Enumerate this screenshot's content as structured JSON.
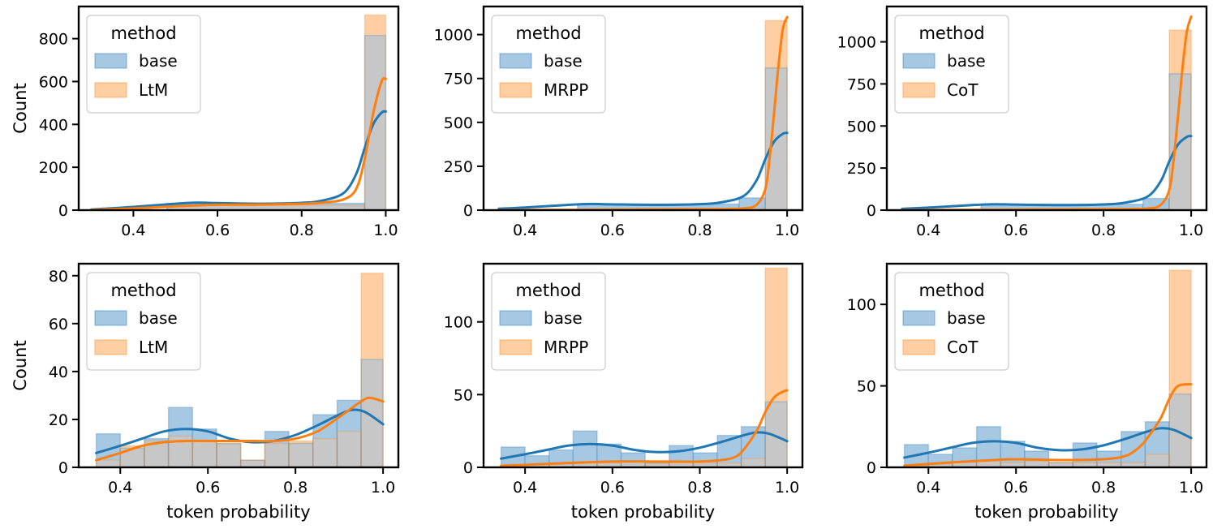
{
  "colors": {
    "base": "#1f77b4",
    "alt": "#ff7f0e",
    "base_fill": "#a6c8e3",
    "alt_fill": "#ffcfa3",
    "overlap_fill": "#bdbdbd"
  },
  "chart_data": [
    {
      "type": "histogram",
      "panel": "top-left",
      "legend_title": "method",
      "legend": [
        "base",
        "LtM"
      ],
      "xlabel": "",
      "ylabel": "Count",
      "xlim": [
        0.27,
        1.03
      ],
      "ylim": [
        0,
        950
      ],
      "xticks": [
        0.4,
        0.6,
        0.8,
        1.0
      ],
      "xtick_labels": [
        "0.4",
        "0.6",
        "0.8",
        "1.0"
      ],
      "yticks": [
        0,
        200,
        400,
        600,
        800
      ],
      "ytick_labels": [
        "0",
        "200",
        "400",
        "600",
        "800"
      ],
      "bin_edges": [
        0.48,
        0.95,
        1.0
      ],
      "series": [
        {
          "name": "base",
          "counts": [
            32,
            815
          ],
          "kde_x": [
            0.3,
            0.4,
            0.5,
            0.55,
            0.6,
            0.7,
            0.8,
            0.85,
            0.9,
            0.93,
            0.95,
            0.97,
            0.99,
            1.0
          ],
          "kde_y": [
            3,
            15,
            30,
            35,
            33,
            30,
            34,
            45,
            80,
            170,
            290,
            400,
            455,
            460
          ]
        },
        {
          "name": "LtM",
          "counts": [
            22,
            910
          ],
          "kde_x": [
            0.3,
            0.4,
            0.5,
            0.6,
            0.7,
            0.8,
            0.85,
            0.9,
            0.93,
            0.95,
            0.97,
            0.99,
            1.0
          ],
          "kde_y": [
            1,
            8,
            18,
            25,
            26,
            30,
            35,
            50,
            100,
            240,
            450,
            600,
            612
          ]
        }
      ]
    },
    {
      "type": "histogram",
      "panel": "top-middle",
      "legend_title": "method",
      "legend": [
        "base",
        "MRPP"
      ],
      "xlabel": "",
      "ylabel": "",
      "xlim": [
        0.305,
        1.035
      ],
      "ylim": [
        0,
        1160
      ],
      "xticks": [
        0.4,
        0.6,
        0.8,
        1.0
      ],
      "xtick_labels": [
        "0.4",
        "0.6",
        "0.8",
        "1.0"
      ],
      "yticks": [
        0,
        250,
        500,
        750,
        1000
      ],
      "ytick_labels": [
        "0",
        "250",
        "500",
        "750",
        "1000"
      ],
      "bin_edges": [
        0.52,
        0.89,
        0.95,
        1.0
      ],
      "series": [
        {
          "name": "base",
          "counts": [
            35,
            70,
            810
          ],
          "kde_x": [
            0.34,
            0.4,
            0.5,
            0.55,
            0.6,
            0.7,
            0.8,
            0.85,
            0.9,
            0.93,
            0.95,
            0.97,
            0.99,
            1.0
          ],
          "kde_y": [
            8,
            15,
            30,
            35,
            33,
            30,
            34,
            45,
            80,
            170,
            290,
            390,
            435,
            440
          ]
        },
        {
          "name": "MRPP",
          "counts": [
            3,
            8,
            1080
          ],
          "kde_x": [
            0.34,
            0.5,
            0.7,
            0.85,
            0.9,
            0.93,
            0.95,
            0.96,
            0.97,
            0.98,
            0.99,
            1.0
          ],
          "kde_y": [
            0,
            2,
            4,
            6,
            10,
            30,
            120,
            300,
            550,
            820,
            1030,
            1100
          ]
        }
      ]
    },
    {
      "type": "histogram",
      "panel": "top-right",
      "legend_title": "method",
      "legend": [
        "base",
        "CoT"
      ],
      "xlabel": "",
      "ylabel": "",
      "xlim": [
        0.305,
        1.035
      ],
      "ylim": [
        0,
        1210
      ],
      "xticks": [
        0.4,
        0.6,
        0.8,
        1.0
      ],
      "xtick_labels": [
        "0.4",
        "0.6",
        "0.8",
        "1.0"
      ],
      "yticks": [
        0,
        250,
        500,
        750,
        1000
      ],
      "ytick_labels": [
        "0",
        "250",
        "500",
        "750",
        "1000"
      ],
      "bin_edges": [
        0.52,
        0.89,
        0.95,
        1.0
      ],
      "series": [
        {
          "name": "base",
          "counts": [
            35,
            70,
            810
          ],
          "kde_x": [
            0.34,
            0.4,
            0.5,
            0.55,
            0.6,
            0.7,
            0.8,
            0.85,
            0.9,
            0.93,
            0.95,
            0.97,
            0.99,
            1.0
          ],
          "kde_y": [
            8,
            15,
            30,
            35,
            33,
            30,
            34,
            45,
            80,
            170,
            290,
            390,
            435,
            440
          ]
        },
        {
          "name": "CoT",
          "counts": [
            3,
            8,
            1070
          ],
          "kde_x": [
            0.34,
            0.5,
            0.7,
            0.85,
            0.9,
            0.93,
            0.95,
            0.96,
            0.97,
            0.98,
            0.99,
            1.0
          ],
          "kde_y": [
            0,
            2,
            4,
            6,
            10,
            30,
            120,
            300,
            560,
            840,
            1060,
            1150
          ]
        }
      ]
    },
    {
      "type": "histogram",
      "panel": "bottom-left",
      "legend_title": "method",
      "legend": [
        "base",
        "LtM"
      ],
      "xlabel": "token probability",
      "ylabel": "Count",
      "xlim": [
        0.305,
        1.035
      ],
      "ylim": [
        0,
        85
      ],
      "xticks": [
        0.4,
        0.6,
        0.8,
        1.0
      ],
      "xtick_labels": [
        "0.4",
        "0.6",
        "0.8",
        "1.0"
      ],
      "yticks": [
        0,
        20,
        40,
        60,
        80
      ],
      "ytick_labels": [
        "0",
        "20",
        "40",
        "60",
        "80"
      ],
      "bin_edges": [
        0.345,
        0.4,
        0.455,
        0.51,
        0.565,
        0.62,
        0.675,
        0.73,
        0.785,
        0.84,
        0.895,
        0.95,
        1.0
      ],
      "series": [
        {
          "name": "base",
          "counts": [
            14,
            8,
            12,
            25,
            16,
            10,
            3,
            15,
            10,
            22,
            28,
            45
          ],
          "kde_x": [
            0.345,
            0.4,
            0.45,
            0.5,
            0.55,
            0.6,
            0.65,
            0.7,
            0.75,
            0.8,
            0.85,
            0.9,
            0.93,
            0.96,
            1.0
          ],
          "kde_y": [
            6,
            9,
            12,
            15,
            16,
            15,
            12,
            10.5,
            11,
            13.5,
            17.5,
            22,
            24,
            23,
            18
          ]
        },
        {
          "name": "LtM",
          "counts": [
            3,
            9,
            11,
            13,
            11,
            10,
            3,
            10,
            11,
            12,
            15,
            81
          ],
          "kde_x": [
            0.345,
            0.4,
            0.45,
            0.5,
            0.55,
            0.6,
            0.65,
            0.7,
            0.75,
            0.8,
            0.85,
            0.9,
            0.95,
            0.97,
            1.0
          ],
          "kde_y": [
            3,
            6,
            9,
            10.5,
            11,
            11,
            11,
            11,
            11,
            12,
            15,
            21,
            27.5,
            29,
            27.5
          ]
        }
      ]
    },
    {
      "type": "histogram",
      "panel": "bottom-middle",
      "legend_title": "method",
      "legend": [
        "base",
        "MRPP"
      ],
      "xlabel": "token probability",
      "ylabel": "",
      "xlim": [
        0.305,
        1.035
      ],
      "ylim": [
        0,
        140
      ],
      "xticks": [
        0.4,
        0.6,
        0.8,
        1.0
      ],
      "xtick_labels": [
        "0.4",
        "0.6",
        "0.8",
        "1.0"
      ],
      "yticks": [
        0,
        50,
        100
      ],
      "ytick_labels": [
        "0",
        "50",
        "100"
      ],
      "bin_edges": [
        0.345,
        0.4,
        0.455,
        0.51,
        0.565,
        0.62,
        0.675,
        0.73,
        0.785,
        0.84,
        0.895,
        0.95,
        1.0
      ],
      "series": [
        {
          "name": "base",
          "counts": [
            14,
            8,
            12,
            25,
            16,
            10,
            3,
            15,
            10,
            22,
            28,
            45
          ],
          "kde_x": [
            0.345,
            0.4,
            0.45,
            0.5,
            0.55,
            0.6,
            0.65,
            0.7,
            0.75,
            0.8,
            0.85,
            0.9,
            0.93,
            0.96,
            1.0
          ],
          "kde_y": [
            6,
            9,
            12,
            15,
            16,
            15,
            12,
            10.5,
            11,
            13.5,
            17.5,
            22,
            24,
            23,
            18
          ]
        },
        {
          "name": "MRPP",
          "counts": [
            2,
            2,
            3,
            3,
            3,
            4,
            3,
            3,
            3,
            3,
            6,
            137
          ],
          "kde_x": [
            0.345,
            0.5,
            0.6,
            0.7,
            0.8,
            0.85,
            0.88,
            0.9,
            0.93,
            0.95,
            0.97,
            0.99,
            1.0
          ],
          "kde_y": [
            1,
            3,
            4,
            4,
            4,
            5,
            7,
            12,
            25,
            38,
            48,
            52,
            53
          ]
        }
      ]
    },
    {
      "type": "histogram",
      "panel": "bottom-right",
      "legend_title": "method",
      "legend": [
        "base",
        "CoT"
      ],
      "xlabel": "token probability",
      "ylabel": "",
      "xlim": [
        0.305,
        1.035
      ],
      "ylim": [
        0,
        125
      ],
      "xticks": [
        0.4,
        0.6,
        0.8,
        1.0
      ],
      "xtick_labels": [
        "0.4",
        "0.6",
        "0.8",
        "1.0"
      ],
      "yticks": [
        0,
        50,
        100
      ],
      "ytick_labels": [
        "0",
        "50",
        "100"
      ],
      "bin_edges": [
        0.345,
        0.4,
        0.455,
        0.51,
        0.565,
        0.62,
        0.675,
        0.73,
        0.785,
        0.84,
        0.895,
        0.95,
        1.0
      ],
      "series": [
        {
          "name": "base",
          "counts": [
            14,
            8,
            12,
            25,
            16,
            10,
            3,
            15,
            10,
            22,
            28,
            45
          ],
          "kde_x": [
            0.345,
            0.4,
            0.45,
            0.5,
            0.55,
            0.6,
            0.65,
            0.7,
            0.75,
            0.8,
            0.85,
            0.9,
            0.93,
            0.96,
            1.0
          ],
          "kde_y": [
            6,
            9,
            12,
            15,
            16,
            15,
            12,
            10.5,
            11,
            13.5,
            17.5,
            22,
            24,
            23,
            18
          ]
        },
        {
          "name": "CoT",
          "counts": [
            1,
            2,
            3,
            4,
            3,
            4,
            3,
            3,
            3,
            3,
            8,
            121
          ],
          "kde_x": [
            0.345,
            0.45,
            0.55,
            0.6,
            0.7,
            0.8,
            0.85,
            0.88,
            0.9,
            0.93,
            0.95,
            0.97,
            1.0
          ],
          "kde_y": [
            1,
            3,
            4.5,
            5,
            4.5,
            5,
            7,
            12,
            18,
            30,
            42,
            50,
            51
          ]
        }
      ]
    }
  ]
}
